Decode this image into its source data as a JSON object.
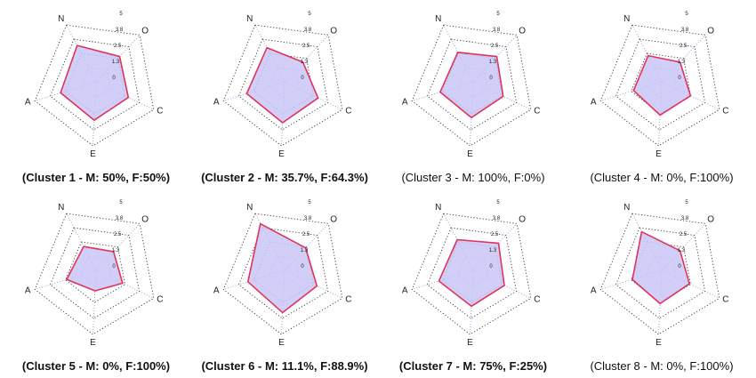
{
  "chart_data": [
    {
      "type": "radar",
      "title": "(Cluster 1 - M: 50%, F:50%)",
      "title_bold": true,
      "axes": [
        "N",
        "O",
        "C",
        "E",
        "A"
      ],
      "ticks": [
        "0",
        "1.3",
        "2.5",
        "3.8",
        "5"
      ],
      "rmax": 5,
      "values": [
        3.2,
        2.7,
        2.8,
        3.0,
        2.9
      ]
    },
    {
      "type": "radar",
      "title": "(Cluster 2 - M: 35.7%, F:64.3%)",
      "title_bold": true,
      "axes": [
        "N",
        "O",
        "C",
        "E",
        "A"
      ],
      "ticks": [
        "0",
        "1.3",
        "2.5",
        "3.8",
        "5"
      ],
      "rmax": 5,
      "values": [
        3.0,
        2.1,
        2.9,
        3.2,
        3.1
      ]
    },
    {
      "type": "radar",
      "title": "(Cluster 3 - M: 100%, F:0%)",
      "title_bold": false,
      "axes": [
        "N",
        "O",
        "C",
        "E",
        "A"
      ],
      "ticks": [
        "0",
        "1.3",
        "2.5",
        "3.8",
        "5"
      ],
      "rmax": 5,
      "values": [
        2.6,
        2.7,
        2.6,
        2.8,
        2.7
      ]
    },
    {
      "type": "radar",
      "title": "(Cluster 4 - M: 0%, F:100%)",
      "title_bold": false,
      "axes": [
        "N",
        "O",
        "C",
        "E",
        "A"
      ],
      "ticks": [
        "0",
        "1.3",
        "2.5",
        "3.8",
        "5"
      ],
      "rmax": 5,
      "values": [
        2.3,
        2.1,
        2.5,
        2.6,
        2.3
      ]
    },
    {
      "type": "radar",
      "title": "(Cluster 5 - M: 0%, F:100%)",
      "title_bold": true,
      "axes": [
        "N",
        "O",
        "C",
        "E",
        "A"
      ],
      "ticks": [
        "0",
        "1.3",
        "2.5",
        "3.8",
        "5"
      ],
      "rmax": 5,
      "values": [
        2.1,
        2.0,
        2.3,
        1.6,
        2.4
      ]
    },
    {
      "type": "radar",
      "title": "(Cluster 6 - M: 11.1%, F:88.9%)",
      "title_bold": true,
      "axes": [
        "N",
        "O",
        "C",
        "E",
        "A"
      ],
      "ticks": [
        "0",
        "1.3",
        "2.5",
        "3.8",
        "5"
      ],
      "rmax": 5,
      "values": [
        4.1,
        2.4,
        2.8,
        3.3,
        3.0
      ]
    },
    {
      "type": "radar",
      "title": "(Cluster 7 - M: 75%, F:25%)",
      "title_bold": true,
      "axes": [
        "N",
        "O",
        "C",
        "E",
        "A"
      ],
      "ticks": [
        "0",
        "1.3",
        "2.5",
        "3.8",
        "5"
      ],
      "rmax": 5,
      "values": [
        2.7,
        2.9,
        2.7,
        2.8,
        2.8
      ]
    },
    {
      "type": "radar",
      "title": "(Cluster 8 - M: 0%, F:100%)",
      "title_bold": false,
      "axes": [
        "N",
        "O",
        "C",
        "E",
        "A"
      ],
      "ticks": [
        "0",
        "1.3",
        "2.5",
        "3.8",
        "5"
      ],
      "rmax": 5,
      "values": [
        3.4,
        2.1,
        2.4,
        2.6,
        2.4
      ]
    }
  ],
  "colors": {
    "fill": "#c9c5f7",
    "stroke": "#e0335a",
    "grid": "#333333",
    "inner_grid": "#8a87d6"
  }
}
